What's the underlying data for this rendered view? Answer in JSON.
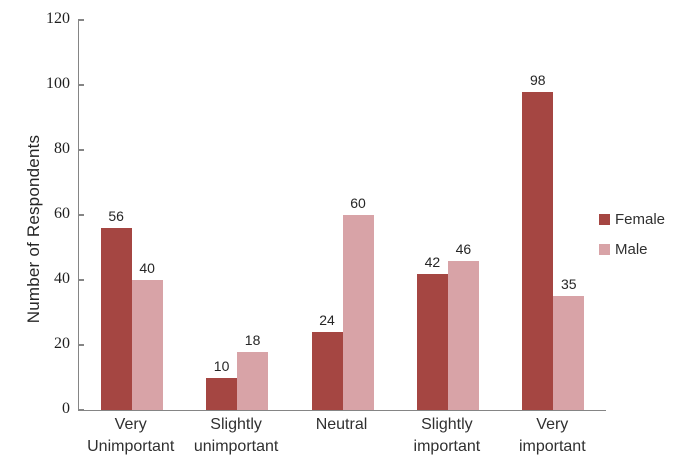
{
  "chart_data": {
    "type": "bar",
    "title": "",
    "xlabel": "",
    "ylabel": "Number of Respondents",
    "categories": [
      "Very Unimportant",
      "Slightly unimportant",
      "Neutral",
      "Slightly important",
      "Very important"
    ],
    "category_lines": [
      [
        "Very",
        "Unimportant"
      ],
      [
        "Slightly",
        "unimportant"
      ],
      [
        "Neutral"
      ],
      [
        "Slightly",
        "important"
      ],
      [
        "Very",
        "important"
      ]
    ],
    "series": [
      {
        "name": "Female",
        "color": "#A54642",
        "values": [
          56,
          10,
          24,
          42,
          98
        ]
      },
      {
        "name": "Male",
        "color": "#D8A3A7",
        "values": [
          40,
          18,
          60,
          46,
          35
        ]
      }
    ],
    "ylim": [
      0,
      120
    ],
    "ytick_step": 20,
    "yticks": [
      0,
      20,
      40,
      60,
      80,
      100,
      120
    ],
    "grid": false,
    "legend_position": "right",
    "axis_color": "#858585",
    "data_labels_shown": true
  }
}
